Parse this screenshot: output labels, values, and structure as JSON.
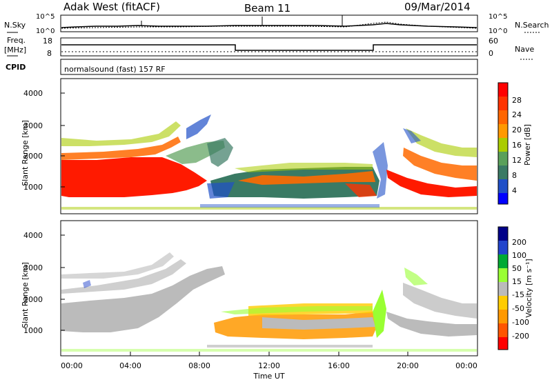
{
  "header": {
    "radar": "Adak West (fitACF)",
    "beam": "Beam 11",
    "date": "09/Mar/2014"
  },
  "panels": {
    "noise": {
      "left_label": "N.Sky",
      "right_label": "N.Search",
      "left_ticks": [
        "10^5",
        "10^0"
      ],
      "right_ticks": [
        "10^5",
        "10^0"
      ]
    },
    "freq": {
      "left_label_line1": "Freq.",
      "left_label_line2": "[MHz]",
      "right_label": "Nave",
      "left_ticks": [
        "18",
        "8"
      ],
      "right_ticks": [
        "60",
        "0"
      ]
    },
    "cpid": {
      "label": "CPID",
      "text": "normalsound (fast) 157 RF"
    }
  },
  "colors": {
    "power": [
      "#0000ff",
      "#2050c8",
      "#3a7a64",
      "#5aa05a",
      "#aacc00",
      "#ff9900",
      "#ff6600",
      "#ff3300",
      "#ff0000"
    ],
    "velocity": [
      "#ff0000",
      "#ff5500",
      "#ff9900",
      "#ffcc00",
      "#bbbbbb",
      "#99ff33",
      "#00aa33",
      "#2244cc",
      "#000088"
    ]
  },
  "chart_data": [
    {
      "type": "heatmap",
      "ylabel": "Slant Range [km]",
      "y_ticks": [
        "1000",
        "2000",
        "3000",
        "4000"
      ],
      "ylim": [
        200,
        4600
      ],
      "x_ticks": [
        "00:00",
        "04:00",
        "08:00",
        "12:00",
        "16:00",
        "20:00",
        "00:00"
      ],
      "colorbar": {
        "label": "Power [dB]",
        "ticks": [
          "4",
          "8",
          "12",
          "16",
          "20",
          "24",
          "28"
        ]
      }
    },
    {
      "type": "heatmap",
      "ylabel": "Slant Range [km]",
      "y_ticks": [
        "1000",
        "2000",
        "3000",
        "4000"
      ],
      "ylim": [
        200,
        4600
      ],
      "x_ticks": [
        "00:00",
        "04:00",
        "08:00",
        "12:00",
        "16:00",
        "20:00",
        "00:00"
      ],
      "xlabel": "Time UT",
      "colorbar": {
        "label": "Velocity [m s⁻¹]",
        "ticks": [
          "-200",
          "-100",
          "-50",
          "-15",
          "15",
          "50",
          "100",
          "200"
        ]
      }
    }
  ]
}
